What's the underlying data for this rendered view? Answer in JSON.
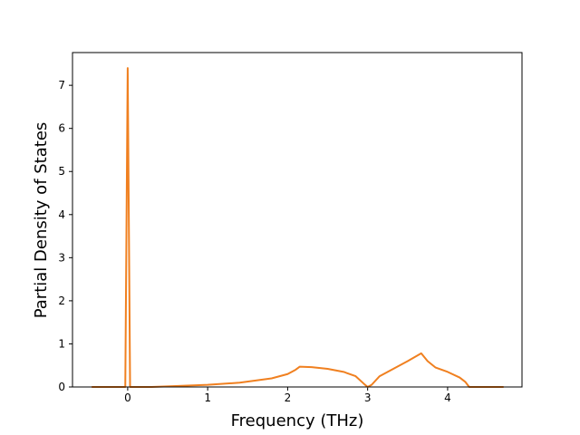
{
  "chart_data": {
    "type": "line",
    "x_label": "Frequency (THz)",
    "y_label": "Partial Density of States",
    "xlim": [
      -0.69,
      4.93
    ],
    "ylim": [
      0,
      7.76
    ],
    "xticks": [
      0,
      1,
      2,
      3,
      4
    ],
    "yticks": [
      0,
      1,
      2,
      3,
      4,
      5,
      6,
      7
    ],
    "grid": false,
    "x": [
      -0.45,
      -0.03,
      0,
      0.03,
      0.3,
      0.6,
      1.0,
      1.4,
      1.8,
      2.0,
      2.1,
      2.15,
      2.3,
      2.5,
      2.7,
      2.85,
      2.95,
      3.0,
      3.05,
      3.15,
      3.3,
      3.5,
      3.67,
      3.75,
      3.85,
      4.0,
      4.15,
      4.22,
      4.27,
      4.7
    ],
    "series": [
      {
        "color": "#f08020",
        "values": [
          0,
          0,
          7.4,
          0,
          0,
          0.02,
          0.05,
          0.1,
          0.2,
          0.3,
          0.4,
          0.47,
          0.46,
          0.42,
          0.35,
          0.25,
          0.08,
          0,
          0.05,
          0.25,
          0.4,
          0.6,
          0.78,
          0.6,
          0.45,
          0.35,
          0.22,
          0.12,
          0,
          0
        ]
      }
    ]
  }
}
